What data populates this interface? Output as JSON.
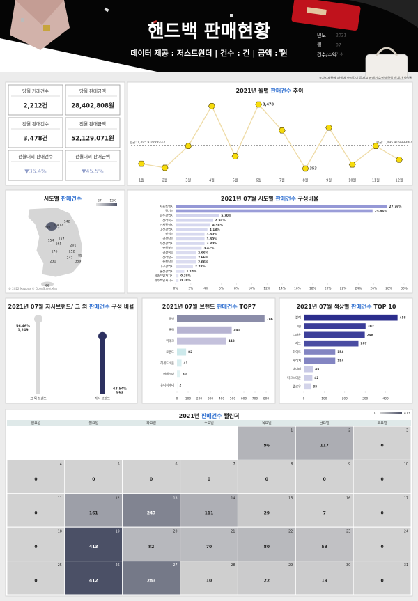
{
  "header": {
    "title": "핸드백 판매현황",
    "subtitle": "데이터 제공 : 저스트원더 | 건수 : 건 | 금액 : 원",
    "filters": [
      {
        "label": "년도",
        "value": "2021"
      },
      {
        "label": "월",
        "value": "07"
      },
      {
        "label": "건수/수익",
        "value": "건수"
      }
    ],
    "note": "※자사제품에 파생에 측정값이 존재시 판매건수/판매금액 합계가 반영됨"
  },
  "kpis": [
    {
      "label": "당월 거래건수",
      "value": "2,212건"
    },
    {
      "label": "당월 판매금액",
      "value": "28,402,808원"
    },
    {
      "label": "전월 판매건수",
      "value": "3,478건"
    },
    {
      "label": "전월 판매금액",
      "value": "52,129,071원"
    },
    {
      "label": "전월대비 판매건수",
      "value": "▼36.4%"
    },
    {
      "label": "전월대비 판매금액",
      "value": "▼45.5%"
    }
  ],
  "highlight_color": "#2f6fd0",
  "chart_data": [
    {
      "type": "line",
      "title": [
        "2021년 월별 ",
        "판매건수",
        " 추이"
      ],
      "categories": [
        "1월",
        "2월",
        "3월",
        "4월",
        "5월",
        "6월",
        "7월",
        "8월",
        "9월",
        "10월",
        "11월",
        "12월"
      ],
      "values": [
        588,
        390,
        1450,
        3400,
        950,
        3478,
        2212,
        353,
        2350,
        550,
        1450,
        780
      ],
      "value_labels": [
        null,
        null,
        null,
        null,
        null,
        "3,478",
        null,
        "353",
        null,
        null,
        null,
        null
      ],
      "color": "#efdca8",
      "marker_color": "#f7dc0c",
      "average": {
        "value": 1495.916666667,
        "label": "평균: 1,495.916666667"
      }
    },
    {
      "type": "map",
      "title": [
        "시도별 ",
        "판매건수"
      ],
      "values": [
        142,
        1417,
        206,
        154,
        157,
        165,
        201,
        176,
        252,
        85,
        247,
        359,
        231,
        66
      ],
      "value_labels": [
        "142",
        "1,417",
        "206",
        "154",
        "157",
        "165",
        "201",
        "176",
        "252",
        "85",
        "247",
        "359",
        "231",
        "66"
      ],
      "colorbar_ticks": [
        27,
        {
          "value": 12000,
          "label": "12K"
        }
      ],
      "color_range": [
        "#e4e4e4",
        "#50556a"
      ],
      "credit": "© 2022 Mapbox © OpenStreetMap"
    },
    {
      "type": "hbar",
      "title": [
        "2021년 07월 시도별 ",
        "판매건수",
        " 구성비율"
      ],
      "categories": [
        "서울특별시",
        "경기도",
        "광주광역시",
        "전라북도",
        "인천광역시",
        "대전광역시",
        "강원도",
        "경상남도",
        "부산광역시",
        "충청북도",
        "경상북도",
        "전라남도",
        "충청남도",
        "대구광역시",
        "울산광역시",
        "세종특별자치시",
        "제주특별자치도"
      ],
      "values": [
        27.76,
        25.86,
        5.7,
        4.94,
        4.56,
        4.18,
        3.8,
        3.8,
        3.8,
        3.42,
        2.66,
        2.66,
        2.66,
        2.28,
        1.14,
        0.38,
        0.38
      ],
      "value_labels": [
        "27.76%",
        "25.86%",
        "5.70%",
        "4.94%",
        "4.56%",
        "4.18%",
        "3.80%",
        "3.80%",
        "3.80%",
        "3.42%",
        "2.66%",
        "2.66%",
        "2.66%",
        "2.28%",
        "1.14%",
        "0.38%",
        "0.38%"
      ],
      "color_range": [
        "#e2e3f3",
        "#9598d6"
      ],
      "xlim": [
        0,
        30
      ],
      "xticks": [
        {
          "value": 0,
          "label": "0%"
        },
        {
          "value": 2,
          "label": "2%"
        },
        {
          "value": 4,
          "label": "4%"
        },
        {
          "value": 6,
          "label": "6%"
        },
        {
          "value": 8,
          "label": "8%"
        },
        {
          "value": 10,
          "label": "10%"
        },
        {
          "value": 12,
          "label": "12%"
        },
        {
          "value": 14,
          "label": "14%"
        },
        {
          "value": 16,
          "label": "16%"
        },
        {
          "value": 18,
          "label": "18%"
        },
        {
          "value": 20,
          "label": "20%"
        },
        {
          "value": 22,
          "label": "22%"
        },
        {
          "value": 24,
          "label": "24%"
        },
        {
          "value": 26,
          "label": "26%"
        },
        {
          "value": 28,
          "label": "28%"
        },
        {
          "value": 30,
          "label": "30%"
        }
      ]
    },
    {
      "type": "lollipop",
      "title": [
        "2021년 07월 자사브랜드/ 그 외 ",
        "판매건수",
        " 구성 비율"
      ],
      "categories": [
        "그 외 브랜드",
        "자사 브랜드"
      ],
      "values": [
        56.46,
        43.54
      ],
      "value_labels": [
        "56.46%",
        "43.54%"
      ],
      "count_labels": [
        "1,249",
        "963"
      ],
      "colors": [
        "#d9d9d9",
        "#2c3060"
      ]
    },
    {
      "type": "hbar",
      "title": [
        "2021년 07월 브랜드 ",
        "판매건수",
        " TOP7"
      ],
      "categories": [
        "종빙",
        "홀릭",
        "위테크",
        "로렌드",
        "헤세드바움",
        "어메노아",
        "유니피레니"
      ],
      "values": [
        786,
        491,
        442,
        82,
        41,
        30,
        2
      ],
      "colors": [
        "#8b8da9",
        "#b7b4d2",
        "#c4c1dc",
        "#cde9eb",
        "#d8eef0",
        "#e1f2f3",
        "#eaf5f6"
      ],
      "xlim": [
        0,
        800
      ],
      "xticks": [
        0,
        100,
        200,
        300,
        400,
        500,
        600,
        700,
        800
      ]
    },
    {
      "type": "hbar",
      "title": [
        "2021년 07월 색상별 ",
        "판매건수",
        " TOP 10"
      ],
      "categories": [
        "블랙",
        "그린",
        "브라운",
        "레드",
        "화이트",
        "베이지",
        "네이비",
        "다크브라운",
        "옐로우"
      ],
      "values": [
        458,
        302,
        298,
        267,
        154,
        154,
        45,
        42,
        35
      ],
      "colors": [
        "#2b2d8c",
        "#3a3c98",
        "#3d3f9a",
        "#4a4ca2",
        "#8385c2",
        "#8385c2",
        "#c9cae6",
        "#cccde7",
        "#d3d4ea"
      ],
      "xlim": [
        0,
        500
      ],
      "xticks": [
        0,
        100,
        200,
        300,
        400
      ]
    },
    {
      "type": "calendar",
      "title": [
        "2021년 ",
        "판매건수",
        " 캘린더"
      ],
      "weekdays": [
        "일요일",
        "월요일",
        "화요일",
        "수요일",
        "목요일",
        "금요일",
        "토요일"
      ],
      "days": [
        null,
        null,
        null,
        null,
        1,
        2,
        3,
        4,
        5,
        6,
        7,
        8,
        9,
        10,
        11,
        12,
        13,
        14,
        15,
        16,
        17,
        18,
        19,
        20,
        21,
        22,
        23,
        24,
        25,
        26,
        27,
        28,
        29,
        30,
        31
      ],
      "values": [
        null,
        null,
        null,
        null,
        96,
        117,
        0,
        0,
        0,
        0,
        0,
        0,
        0,
        0,
        0,
        161,
        247,
        111,
        29,
        7,
        0,
        0,
        413,
        82,
        70,
        80,
        53,
        0,
        0,
        412,
        283,
        10,
        22,
        19,
        0
      ],
      "colorbar_ticks": [
        0,
        413
      ],
      "color_range": [
        "#d2d2d2",
        "#4b5066"
      ]
    }
  ]
}
